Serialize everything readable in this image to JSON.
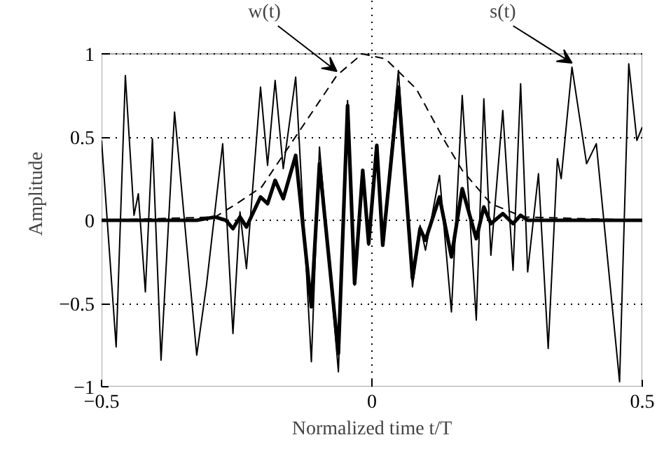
{
  "chart_data": {
    "type": "line",
    "xlabel": "Normalized time t/T",
    "ylabel": "Amplitude",
    "xlim": [
      -0.5,
      0.5
    ],
    "ylim": [
      -1,
      1
    ],
    "xticks": [
      -0.5,
      0,
      0.5
    ],
    "yticks": [
      -1,
      -0.5,
      0,
      0.5,
      1
    ],
    "grid": true,
    "marker": "none",
    "series": [
      {
        "color": "#000000",
        "line_style": "solid",
        "x": [
          -0.5,
          -0.473,
          -0.456,
          -0.44,
          -0.432,
          -0.419,
          -0.406,
          -0.39,
          -0.365,
          -0.324,
          -0.306,
          -0.276,
          -0.257,
          -0.244,
          -0.232,
          -0.206,
          -0.193,
          -0.179,
          -0.164,
          -0.141,
          -0.112,
          -0.097,
          -0.062,
          -0.045,
          -0.032,
          -0.017,
          -0.006,
          0.009,
          0.02,
          0.049,
          0.075,
          0.089,
          0.099,
          0.125,
          0.147,
          0.167,
          0.193,
          0.207,
          0.22,
          0.242,
          0.261,
          0.275,
          0.288,
          0.308,
          0.326,
          0.343,
          0.35,
          0.37,
          0.397,
          0.415,
          0.458,
          0.475,
          0.49,
          0.5
        ],
        "values": [
          0.48,
          -0.76,
          0.87,
          0.03,
          0.16,
          -0.43,
          0.49,
          -0.84,
          0.65,
          -0.81,
          -0.39,
          0.46,
          -0.68,
          0.05,
          -0.29,
          0.8,
          0.33,
          0.84,
          0.31,
          0.86,
          -0.85,
          0.44,
          -0.91,
          0.72,
          -0.39,
          0.3,
          -0.15,
          0.45,
          -0.15,
          0.9,
          -0.4,
          -0.03,
          -0.18,
          0.27,
          -0.55,
          0.75,
          -0.6,
          0.73,
          -0.21,
          0.66,
          -0.3,
          0.82,
          -0.31,
          0.28,
          -0.77,
          0.37,
          0.25,
          0.92,
          0.34,
          0.46,
          -0.97,
          0.94,
          0.48,
          0.56
        ]
      },
      {
        "color": "#000000",
        "line_style": "solid",
        "x": [
          -0.5,
          -0.324,
          -0.29,
          -0.27,
          -0.257,
          -0.244,
          -0.232,
          -0.206,
          -0.193,
          -0.179,
          -0.164,
          -0.141,
          -0.112,
          -0.097,
          -0.062,
          -0.045,
          -0.032,
          -0.017,
          -0.006,
          0.009,
          0.02,
          0.049,
          0.075,
          0.089,
          0.099,
          0.125,
          0.147,
          0.167,
          0.193,
          0.207,
          0.22,
          0.242,
          0.261,
          0.275,
          0.288,
          0.5
        ],
        "values": [
          0,
          0,
          0.02,
          0.0,
          -0.05,
          0.02,
          -0.04,
          0.14,
          0.1,
          0.24,
          0.13,
          0.39,
          -0.52,
          0.34,
          -0.8,
          0.69,
          -0.38,
          0.3,
          -0.14,
          0.45,
          -0.15,
          0.8,
          -0.35,
          -0.05,
          -0.12,
          0.14,
          -0.22,
          0.19,
          -0.11,
          0.08,
          -0.02,
          0.04,
          -0.02,
          0.03,
          0,
          0
        ]
      },
      {
        "color": "#000000",
        "line_style": "dashed",
        "x": [
          -0.5,
          -0.29,
          -0.25,
          -0.204,
          -0.125,
          -0.065,
          -0.018,
          0.025,
          0.082,
          0.134,
          0.167,
          0.22,
          0.28,
          0.5
        ],
        "values": [
          0,
          0.02,
          0.1,
          0.2,
          0.58,
          0.87,
          1.0,
          0.97,
          0.79,
          0.48,
          0.3,
          0.1,
          0.02,
          0
        ]
      }
    ],
    "annotations": [
      {
        "text": "w(t)",
        "x": -0.065,
        "y": 0.87
      },
      {
        "text": "s(t)",
        "x": 0.37,
        "y": 0.92
      }
    ]
  }
}
